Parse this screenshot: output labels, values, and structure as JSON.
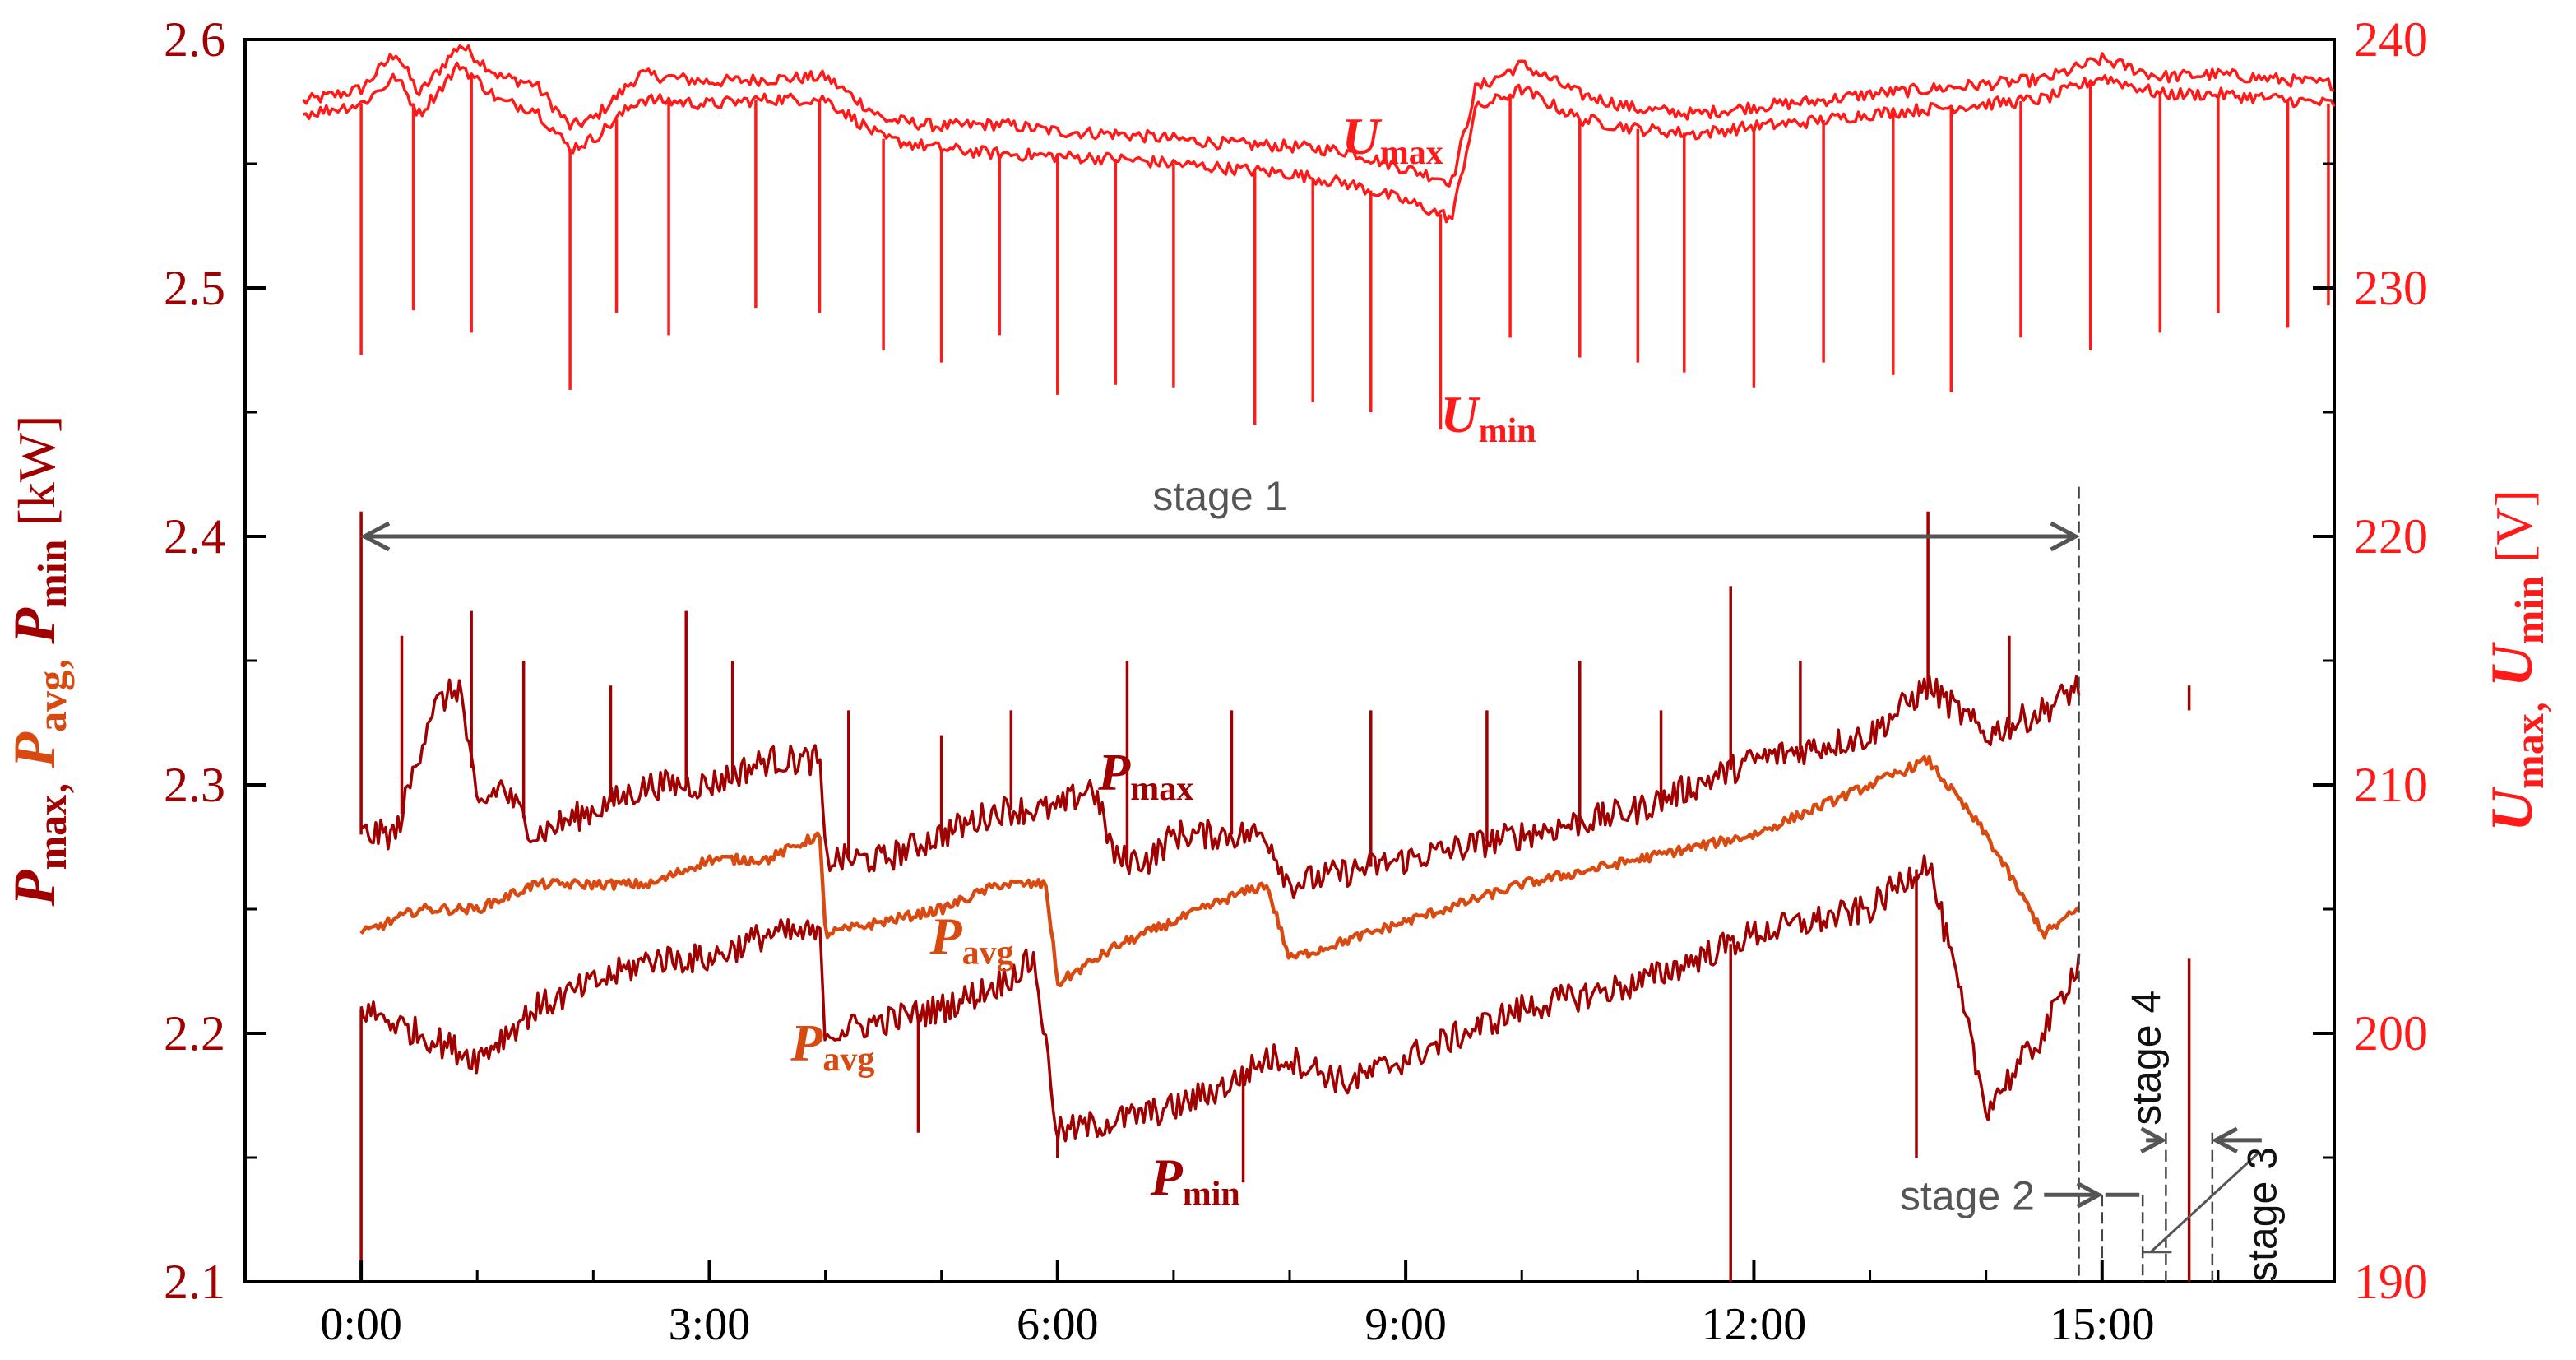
{
  "chart_data": {
    "type": "line",
    "title": "",
    "xlabel": "",
    "x_ticks": [
      "0:00",
      "3:00",
      "6:00",
      "9:00",
      "12:00",
      "15:00"
    ],
    "x_tick_hours": [
      0,
      3,
      6,
      9,
      12,
      15
    ],
    "xlim_hours": [
      -1.0,
      17.0
    ],
    "y_left": {
      "label_parts": [
        {
          "main": "P",
          "sub": "max",
          "sep": ", ",
          "color": "#a00000"
        },
        {
          "main": "P",
          "sub": "avg",
          "sep": ", ",
          "color": "#d94a10"
        },
        {
          "main": "P",
          "sub": "min",
          "sep": " ",
          "color": "#a00000"
        }
      ],
      "unit": "[kW]",
      "ylim": [
        2.1,
        2.6
      ],
      "ticks": [
        "2.1",
        "2.2",
        "2.3",
        "2.4",
        "2.5",
        "2.6"
      ]
    },
    "y_right": {
      "label_parts": [
        {
          "main": "U",
          "sub": "max",
          "sep": ", "
        },
        {
          "main": "U",
          "sub": "min",
          "sep": " "
        }
      ],
      "unit": "[V]",
      "ylim": [
        190,
        240
      ],
      "ticks": [
        "190",
        "200",
        "210",
        "220",
        "230",
        "240"
      ],
      "color": "#ff1a1a"
    },
    "series": [
      {
        "name": "Umax",
        "axis": "right",
        "color": "#ff1a1a",
        "x": [
          -0.5,
          0,
          0.3,
          0.5,
          0.85,
          1.2,
          1.5,
          1.8,
          2.0,
          2.4,
          3.0,
          3.5,
          4.0,
          4.5,
          5.0,
          5.5,
          6.0,
          6.5,
          7.0,
          7.5,
          8.0,
          8.5,
          9.0,
          9.4,
          9.6,
          10.0,
          10.5,
          11.0,
          11.5,
          12.0,
          12.5,
          13.0,
          13.5,
          14.0,
          14.5,
          15.0,
          15.5,
          16.0,
          16.5,
          17.0
        ],
        "y": [
          237.5,
          238,
          239.5,
          237.8,
          239.8,
          238.5,
          238.2,
          236.5,
          236.8,
          238.6,
          238.3,
          238.4,
          238.5,
          236.8,
          236.5,
          236.6,
          236.3,
          236.2,
          236.0,
          235.8,
          235.7,
          235.5,
          234.8,
          234.3,
          238.0,
          239.0,
          237.8,
          237.2,
          237.0,
          237.3,
          237.5,
          237.8,
          238.0,
          238.2,
          238.4,
          239.2,
          238.5,
          238.6,
          238.4,
          238.2
        ]
      },
      {
        "name": "Umin",
        "axis": "right",
        "color": "#ff1a1a",
        "x": [
          -0.5,
          0,
          0.3,
          0.5,
          0.85,
          1.2,
          1.5,
          1.8,
          2.0,
          2.4,
          3.0,
          3.5,
          4.0,
          4.5,
          5.0,
          5.5,
          6.0,
          6.5,
          7.0,
          7.5,
          8.0,
          8.5,
          9.0,
          9.4,
          9.6,
          10.0,
          10.5,
          11.0,
          11.5,
          12.0,
          12.5,
          13.0,
          13.5,
          14.0,
          14.5,
          15.0,
          15.5,
          16.0,
          16.5,
          17.0
        ],
        "y": [
          237.0,
          237.4,
          238.5,
          237.0,
          239.0,
          237.5,
          237.2,
          235.6,
          236.0,
          237.6,
          237.4,
          237.6,
          237.6,
          236.0,
          235.6,
          235.4,
          235.3,
          235.2,
          235.0,
          234.8,
          234.6,
          234.2,
          233.5,
          232.8,
          237.2,
          238.0,
          236.8,
          236.4,
          236.2,
          236.5,
          236.7,
          237.0,
          237.2,
          237.4,
          237.6,
          238.5,
          237.8,
          237.8,
          237.6,
          237.4
        ]
      },
      {
        "name": "Pmax",
        "axis": "left",
        "color": "#a00000",
        "x": [
          0,
          0.3,
          0.6,
          0.85,
          1.0,
          1.2,
          1.5,
          2.0,
          2.5,
          3.0,
          3.5,
          3.95,
          4.0,
          4.5,
          5.0,
          5.5,
          6.0,
          6.3,
          6.5,
          6.8,
          7.0,
          7.5,
          7.8,
          8.0,
          9.0,
          10.0,
          11.0,
          12.0,
          13.0,
          13.5,
          14.0,
          14.5,
          14.8
        ],
        "y": [
          2.28,
          2.28,
          2.33,
          2.34,
          2.29,
          2.3,
          2.28,
          2.29,
          2.3,
          2.3,
          2.31,
          2.31,
          2.27,
          2.27,
          2.28,
          2.29,
          2.29,
          2.3,
          2.27,
          2.27,
          2.28,
          2.28,
          2.28,
          2.26,
          2.27,
          2.28,
          2.29,
          2.31,
          2.32,
          2.34,
          2.32,
          2.33,
          2.34
        ]
      },
      {
        "name": "Pavg",
        "axis": "left",
        "color": "#d94a10",
        "x": [
          0,
          0.5,
          1.0,
          1.5,
          2.0,
          2.5,
          3.0,
          3.5,
          3.95,
          4.0,
          4.5,
          5.0,
          5.5,
          5.9,
          6.0,
          6.5,
          7.0,
          7.5,
          7.8,
          8.0,
          9.0,
          10.0,
          11.0,
          12.0,
          13.0,
          13.5,
          14.0,
          14.5,
          14.8
        ],
        "y": [
          2.24,
          2.25,
          2.25,
          2.26,
          2.26,
          2.26,
          2.27,
          2.27,
          2.28,
          2.24,
          2.245,
          2.25,
          2.26,
          2.26,
          2.22,
          2.235,
          2.245,
          2.255,
          2.26,
          2.23,
          2.245,
          2.26,
          2.27,
          2.28,
          2.3,
          2.31,
          2.28,
          2.24,
          2.25
        ]
      },
      {
        "name": "Pmin",
        "axis": "left",
        "color": "#a00000",
        "x": [
          0,
          0.5,
          1.0,
          1.5,
          2.0,
          2.5,
          3.0,
          3.5,
          3.95,
          4.0,
          4.5,
          5.0,
          5.5,
          5.8,
          6.0,
          6.5,
          7.0,
          7.5,
          7.8,
          8.0,
          8.5,
          9.0,
          9.5,
          10.0,
          11.0,
          12.0,
          13.0,
          13.5,
          14.0,
          14.5,
          14.8
        ],
        "y": [
          2.21,
          2.2,
          2.19,
          2.21,
          2.22,
          2.23,
          2.23,
          2.24,
          2.24,
          2.2,
          2.205,
          2.21,
          2.22,
          2.23,
          2.16,
          2.165,
          2.17,
          2.18,
          2.19,
          2.19,
          2.18,
          2.19,
          2.2,
          2.21,
          2.22,
          2.24,
          2.25,
          2.27,
          2.17,
          2.2,
          2.23
        ]
      }
    ],
    "spikes_left": [
      {
        "x": 0.0,
        "y": 2.41
      },
      {
        "x": 0.35,
        "y": 2.36
      },
      {
        "x": 0.95,
        "y": 2.37
      },
      {
        "x": 1.4,
        "y": 2.35
      },
      {
        "x": 2.15,
        "y": 2.34
      },
      {
        "x": 2.8,
        "y": 2.37
      },
      {
        "x": 3.2,
        "y": 2.35
      },
      {
        "x": 4.2,
        "y": 2.33
      },
      {
        "x": 5.0,
        "y": 2.32
      },
      {
        "x": 5.6,
        "y": 2.33
      },
      {
        "x": 6.6,
        "y": 2.35
      },
      {
        "x": 7.5,
        "y": 2.33
      },
      {
        "x": 8.7,
        "y": 2.33
      },
      {
        "x": 9.7,
        "y": 2.33
      },
      {
        "x": 10.5,
        "y": 2.35
      },
      {
        "x": 11.2,
        "y": 2.33
      },
      {
        "x": 11.8,
        "y": 2.38
      },
      {
        "x": 12.4,
        "y": 2.35
      },
      {
        "x": 13.5,
        "y": 2.41
      },
      {
        "x": 14.2,
        "y": 2.36
      },
      {
        "x": 15.75,
        "y": 2.33
      }
    ],
    "dips_left": [
      {
        "x": 0.0,
        "y": 2.1
      },
      {
        "x": 11.8,
        "y": 2.1
      },
      {
        "x": 15.75,
        "y": 2.1
      },
      {
        "x": 6.0,
        "y": 2.15
      },
      {
        "x": 7.6,
        "y": 2.14
      },
      {
        "x": 13.4,
        "y": 2.15
      },
      {
        "x": 4.8,
        "y": 2.16
      }
    ],
    "dips_right": [
      {
        "x": 0.0,
        "y": 227.3
      },
      {
        "x": 0.45,
        "y": 229.1
      },
      {
        "x": 0.95,
        "y": 228.2
      },
      {
        "x": 1.8,
        "y": 225.9
      },
      {
        "x": 2.2,
        "y": 229.0
      },
      {
        "x": 2.65,
        "y": 228.1
      },
      {
        "x": 3.4,
        "y": 229.2
      },
      {
        "x": 3.95,
        "y": 229.0
      },
      {
        "x": 4.5,
        "y": 227.5
      },
      {
        "x": 5.0,
        "y": 227.0
      },
      {
        "x": 5.5,
        "y": 228.1
      },
      {
        "x": 6.0,
        "y": 225.7
      },
      {
        "x": 6.5,
        "y": 226.1
      },
      {
        "x": 7.0,
        "y": 226.0
      },
      {
        "x": 7.7,
        "y": 224.5
      },
      {
        "x": 8.2,
        "y": 225.4
      },
      {
        "x": 8.7,
        "y": 225.0
      },
      {
        "x": 9.3,
        "y": 224.3
      },
      {
        "x": 9.9,
        "y": 228.0
      },
      {
        "x": 10.5,
        "y": 227.2
      },
      {
        "x": 11.0,
        "y": 227.0
      },
      {
        "x": 11.4,
        "y": 226.6
      },
      {
        "x": 12.0,
        "y": 226.0
      },
      {
        "x": 12.6,
        "y": 227.0
      },
      {
        "x": 13.2,
        "y": 226.5
      },
      {
        "x": 13.7,
        "y": 225.8
      },
      {
        "x": 14.3,
        "y": 228.0
      },
      {
        "x": 14.9,
        "y": 227.5
      },
      {
        "x": 15.5,
        "y": 228.2
      },
      {
        "x": 16.0,
        "y": 229.0
      },
      {
        "x": 16.6,
        "y": 228.4
      },
      {
        "x": 16.95,
        "y": 229.3
      }
    ],
    "annotations": {
      "stage1": {
        "text": "stage 1",
        "x_start": 0.0,
        "x_end": 14.8
      },
      "stage2": {
        "text": "stage 2"
      },
      "stage3": {
        "text": "stage 3"
      },
      "stage4": {
        "text": "stage 4"
      },
      "stage_boundaries_hours": [
        14.8,
        15.0,
        15.35,
        15.55,
        15.95
      ],
      "label_Umax": {
        "main": "U",
        "sub": "max"
      },
      "label_Umin": {
        "main": "U",
        "sub": "min"
      },
      "label_Pmax": {
        "main": "P",
        "sub": "max"
      },
      "label_Pavg": {
        "main": "P",
        "sub": "avg"
      },
      "label_Pavg2": {
        "main": "P",
        "sub": "avg"
      },
      "label_Pmin": {
        "main": "P",
        "sub": "min"
      }
    }
  }
}
